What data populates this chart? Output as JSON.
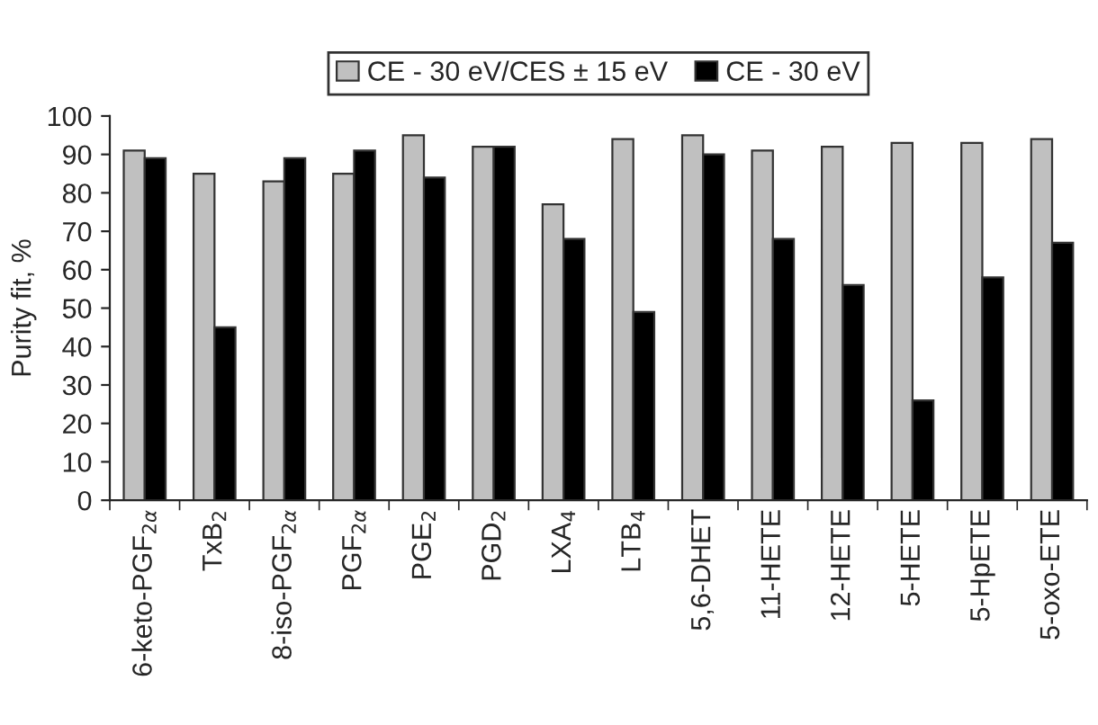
{
  "chart_data": {
    "type": "bar",
    "ylabel": "Purity fit, %",
    "categories": [
      "6-keto-PGF$_{2α}$",
      "TxB$_{2}$",
      "8-iso-PGF$_{2α}$",
      "PGF$_{2α}$",
      "PGE$_{2}$",
      "PGD$_{2}$",
      "LXA$_{4}$",
      "LTB$_{4}$",
      "5,6-DHET",
      "11-HETE",
      "12-HETE",
      "5-HETE",
      "5-HpETE",
      "5-oxo-ETE"
    ],
    "series": [
      {
        "name": "CE - 30 eV/CES ± 15 eV",
        "color": "#c0c0c0",
        "values": [
          91,
          85,
          83,
          85,
          95,
          92,
          77,
          94,
          95,
          91,
          92,
          93,
          93,
          94
        ]
      },
      {
        "name": "CE - 30 eV",
        "color": "#000000",
        "values": [
          89,
          45,
          89,
          91,
          84,
          92,
          68,
          49,
          90,
          68,
          56,
          26,
          58,
          67
        ]
      }
    ],
    "ylim": [
      0,
      100
    ],
    "yticks": [
      0,
      10,
      20,
      30,
      40,
      50,
      60,
      70,
      80,
      90,
      100
    ],
    "grid": false,
    "legend": "top"
  }
}
